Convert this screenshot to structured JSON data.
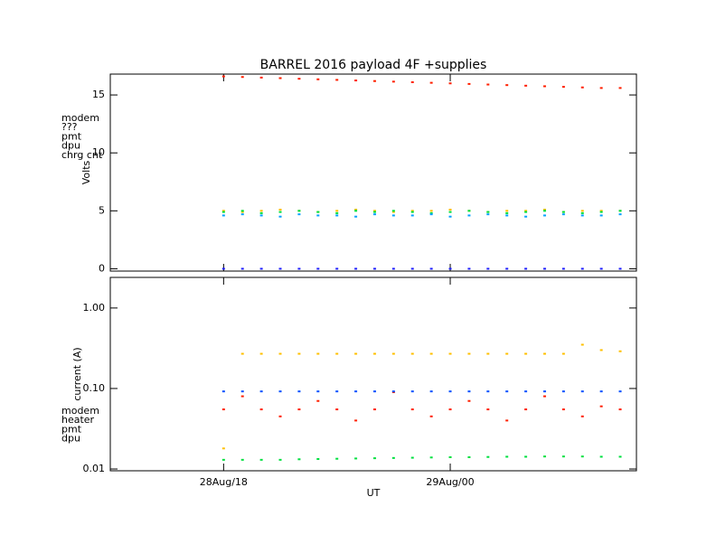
{
  "chart_data": [
    {
      "type": "scatter",
      "title": "BARREL 2016 payload 4F +supplies",
      "y_label": "Volts",
      "x": [
        18,
        18.5,
        19,
        19.5,
        20,
        20.5,
        21,
        21.5,
        22,
        22.5,
        23,
        23.5,
        24,
        24.5,
        25,
        25.5,
        26,
        26.5,
        27,
        27.5,
        28,
        28.5
      ],
      "xlim": [
        15,
        28.93
      ],
      "ylim": [
        -0.2,
        16.8
      ],
      "yticks": [
        0,
        5,
        10,
        15
      ],
      "series": [
        {
          "name": "modem",
          "color": "#ff2000",
          "values": [
            16.6,
            16.55,
            16.5,
            16.45,
            16.4,
            16.35,
            16.3,
            16.25,
            16.2,
            16.15,
            16.1,
            16.05,
            16.0,
            15.95,
            15.9,
            15.85,
            15.8,
            15.75,
            15.7,
            15.65,
            15.6,
            15.6
          ]
        },
        {
          "name": "???",
          "color": "#ffc000",
          "values": [
            5.0,
            4.9,
            5.0,
            5.1,
            5.0,
            4.9,
            5.0,
            5.1,
            5.0,
            4.9,
            5.0,
            5.0,
            5.1,
            5.0,
            4.9,
            5.0,
            5.0,
            5.1,
            4.9,
            5.0,
            5.0,
            5.0
          ]
        },
        {
          "name": "pmt",
          "color": "#00e040",
          "values": [
            4.9,
            5.0,
            4.8,
            4.9,
            5.0,
            4.9,
            4.8,
            5.0,
            4.9,
            5.0,
            4.9,
            4.8,
            4.9,
            5.0,
            4.9,
            4.8,
            4.9,
            5.0,
            4.9,
            4.8,
            4.9,
            5.0
          ]
        },
        {
          "name": "dpu",
          "color": "#00a0ff",
          "values": [
            4.6,
            4.7,
            4.6,
            4.5,
            4.7,
            4.6,
            4.6,
            4.5,
            4.7,
            4.6,
            4.6,
            4.7,
            4.5,
            4.6,
            4.7,
            4.6,
            4.5,
            4.6,
            4.7,
            4.6,
            4.6,
            4.7
          ]
        },
        {
          "name": "chrg cnt",
          "color": "#2020ff",
          "values": [
            0,
            0,
            0,
            0,
            0,
            0,
            0,
            0,
            0,
            0,
            0,
            0,
            0,
            0,
            0,
            0,
            0,
            0,
            0,
            0,
            0,
            0
          ]
        }
      ]
    },
    {
      "type": "scatter",
      "y_label": "current (A)",
      "x_label": "UT",
      "log_y": true,
      "x": [
        18,
        18.5,
        19,
        19.5,
        20,
        20.5,
        21,
        21.5,
        22,
        22.5,
        23,
        23.5,
        24,
        24.5,
        25,
        25.5,
        26,
        26.5,
        27,
        27.5,
        28,
        28.5
      ],
      "xlim": [
        15,
        28.93
      ],
      "xticks": [
        {
          "value": 18,
          "label": "28Aug/18"
        },
        {
          "value": 24,
          "label": "29Aug/00"
        }
      ],
      "ylim": [
        0.0095,
        2.4
      ],
      "yticks": [
        {
          "value": 1,
          "label": "1.00"
        },
        {
          "value": 0.1,
          "label": "0.10"
        },
        0.01
      ],
      "series": [
        {
          "name": "modem",
          "color": "#ff2000",
          "values": [
            0.055,
            0.08,
            0.055,
            0.045,
            0.055,
            0.07,
            0.055,
            0.04,
            0.055,
            0.09,
            0.055,
            0.045,
            0.055,
            0.07,
            0.055,
            0.04,
            0.055,
            0.08,
            0.055,
            0.045,
            0.06,
            0.055
          ]
        },
        {
          "name": "heater",
          "color": "#ffc000",
          "values": [
            0.018,
            0.27,
            0.27,
            0.27,
            0.27,
            0.27,
            0.27,
            0.27,
            0.27,
            0.27,
            0.27,
            0.27,
            0.27,
            0.27,
            0.27,
            0.27,
            0.27,
            0.27,
            0.27,
            0.35,
            0.3,
            0.29
          ]
        },
        {
          "name": "pmt",
          "color": "#00e040",
          "values": [
            0.013,
            0.013,
            0.013,
            0.013,
            0.0132,
            0.0133,
            0.0134,
            0.0135,
            0.0136,
            0.0137,
            0.0138,
            0.0139,
            0.014,
            0.014,
            0.0141,
            0.0142,
            0.0142,
            0.0143,
            0.0143,
            0.0143,
            0.0142,
            0.0142
          ]
        },
        {
          "name": "dpu",
          "color": "#0050ff",
          "values": [
            0.092,
            0.092,
            0.092,
            0.092,
            0.092,
            0.092,
            0.092,
            0.092,
            0.092,
            0.092,
            0.092,
            0.092,
            0.092,
            0.092,
            0.092,
            0.092,
            0.092,
            0.092,
            0.092,
            0.092,
            0.092,
            0.092
          ]
        }
      ]
    }
  ]
}
